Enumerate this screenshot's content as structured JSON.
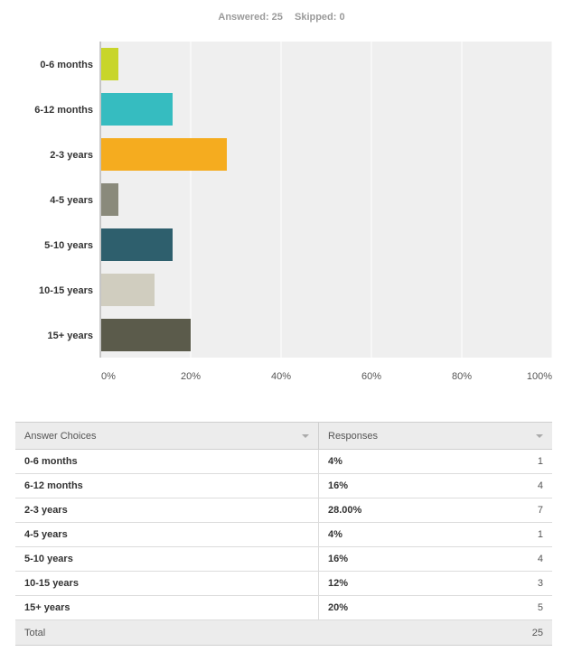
{
  "summary": {
    "answered_label": "Answered: 25",
    "skipped_label": "Skipped: 0"
  },
  "chart_data": {
    "type": "bar",
    "orientation": "horizontal",
    "categories": [
      "0-6 months",
      "6-12 months",
      "2-3 years",
      "4-5 years",
      "5-10 years",
      "10-15 years",
      "15+ years"
    ],
    "values": [
      4,
      16,
      28,
      4,
      16,
      12,
      20
    ],
    "colors": [
      "#c8d52a",
      "#36bcc0",
      "#f5ac1f",
      "#8a8a7b",
      "#2e5f6d",
      "#d0cdbf",
      "#5b5b4b"
    ],
    "xticks": [
      "0%",
      "20%",
      "40%",
      "60%",
      "80%",
      "100%"
    ],
    "xlim": [
      0,
      100
    ],
    "grid": true
  },
  "table": {
    "headers": [
      "Answer Choices",
      "Responses"
    ],
    "rows": [
      {
        "choice": "0-6 months",
        "percent": "4%",
        "count": "1"
      },
      {
        "choice": "6-12 months",
        "percent": "16%",
        "count": "4"
      },
      {
        "choice": "2-3 years",
        "percent": "28.00%",
        "count": "7"
      },
      {
        "choice": "4-5 years",
        "percent": "4%",
        "count": "1"
      },
      {
        "choice": "5-10 years",
        "percent": "16%",
        "count": "4"
      },
      {
        "choice": "10-15 years",
        "percent": "12%",
        "count": "3"
      },
      {
        "choice": "15+ years",
        "percent": "20%",
        "count": "5"
      }
    ],
    "total_label": "Total",
    "total_count": "25"
  }
}
